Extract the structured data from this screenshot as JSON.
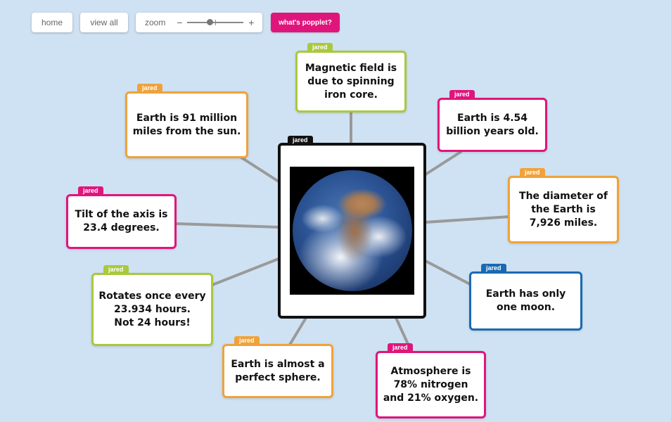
{
  "toolbar": {
    "home_label": "home",
    "view_all_label": "view all",
    "zoom_label": "zoom",
    "zoom_minus": "−",
    "zoom_plus": "+",
    "whats_popplet_label": "what's popplet?"
  },
  "center": {
    "author": "jared",
    "image": "earth-photo"
  },
  "popples": [
    {
      "author": "jared",
      "text": "Magnetic field is\ndue to spinning\niron core.",
      "color": "#a9c93c"
    },
    {
      "author": "jared",
      "text": "Earth is 91 million\nmiles from the sun.",
      "color": "#f0a23a"
    },
    {
      "author": "jared",
      "text": "Earth is 4.54\nbillion years old.",
      "color": "#e0157c"
    },
    {
      "author": "jared",
      "text": "The diameter of\nthe Earth is\n7,926 miles.",
      "color": "#f0a23a"
    },
    {
      "author": "jared",
      "text": "Tilt of the axis is\n23.4 degrees.",
      "color": "#e0157c"
    },
    {
      "author": "jared",
      "text": "Rotates once every\n23.934 hours.\nNot 24 hours!",
      "color": "#a9c93c"
    },
    {
      "author": "jared",
      "text": "Earth has only\none moon.",
      "color": "#1a6ab3"
    },
    {
      "author": "jared",
      "text": "Earth is almost a\nperfect sphere.",
      "color": "#f0a23a"
    },
    {
      "author": "jared",
      "text": "Atmosphere is\n78% nitrogen\nand 21% oxygen.",
      "color": "#e0157c"
    }
  ],
  "colors": {
    "background": "#cfe2f3",
    "connector": "#9a9a9a",
    "accent": "#e0157c"
  }
}
